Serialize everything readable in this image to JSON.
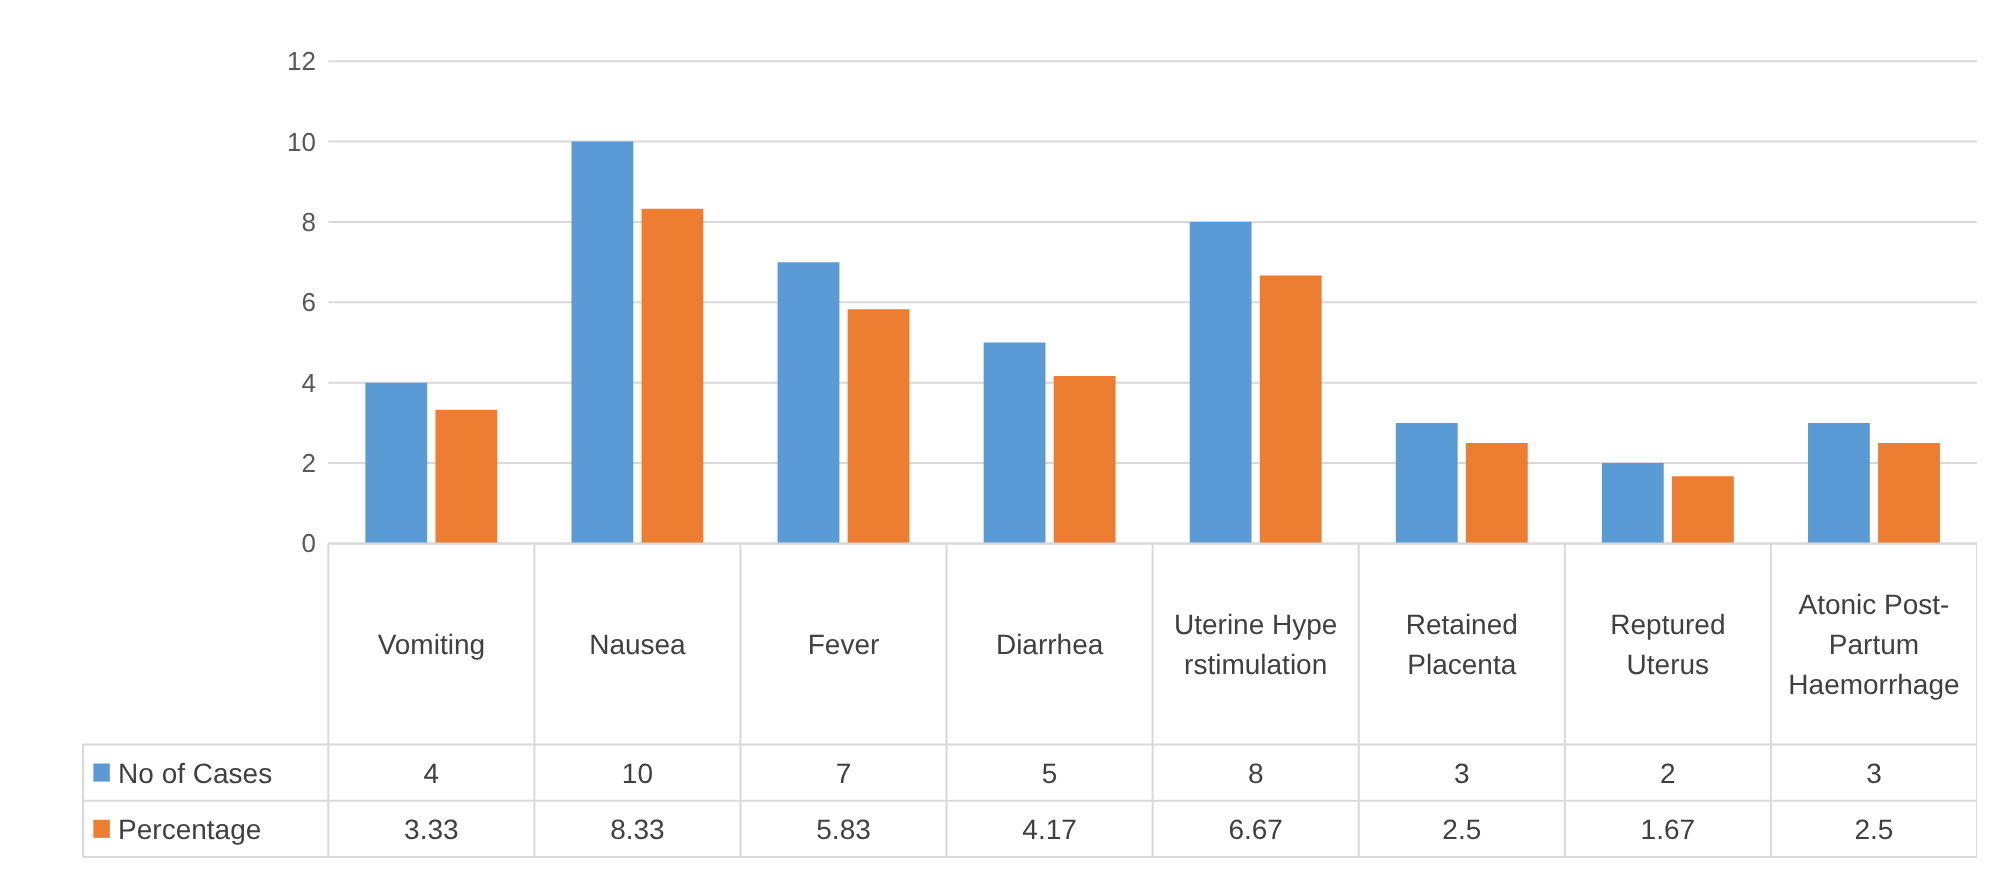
{
  "chart_data": {
    "type": "bar",
    "categories": [
      "Vomiting",
      "Nausea",
      "Fever",
      "Diarrhea",
      "Uterine Hyperstimulation",
      "Retained Placenta",
      "Reptured Uterus",
      "Atonic Post-Partum Haemorrhage"
    ],
    "series": [
      {
        "name": "No of Cases",
        "color": "#5b9bd5",
        "values": [
          4,
          10,
          7,
          5,
          8,
          3,
          2,
          3
        ]
      },
      {
        "name": "Percentage",
        "color": "#ed7d31",
        "values": [
          3.33,
          8.33,
          5.83,
          4.17,
          6.67,
          2.5,
          1.67,
          2.5
        ]
      }
    ],
    "ylim": [
      0,
      12
    ],
    "yticks": [
      0,
      2,
      4,
      6,
      8,
      10,
      12
    ],
    "grid": "y",
    "legend": "bottom left",
    "data_labels": true
  }
}
